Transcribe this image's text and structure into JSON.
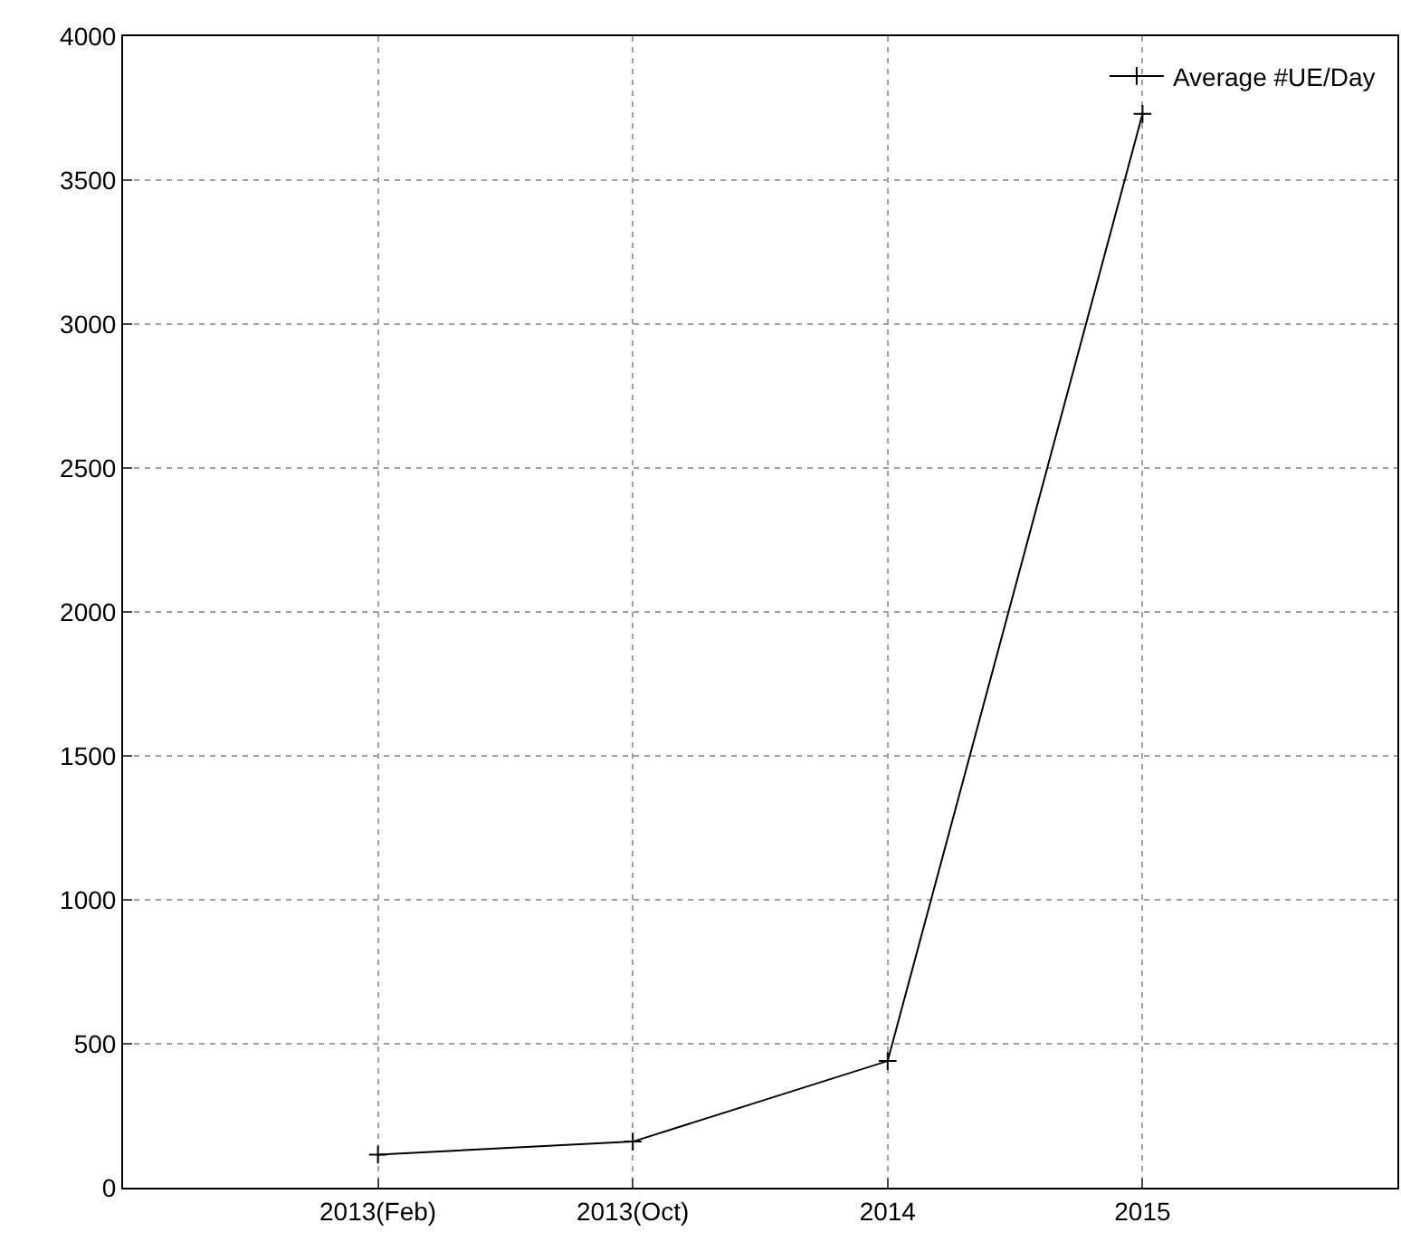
{
  "chart_data": {
    "type": "line",
    "categories": [
      "2013(Feb)",
      "2013(Oct)",
      "2014",
      "2015"
    ],
    "series": [
      {
        "name": "Average #UE/Day",
        "color": "#000000",
        "values": [
          115,
          160,
          440,
          3730
        ]
      }
    ],
    "ylim": [
      0,
      4000
    ],
    "yticks": [
      0,
      500,
      1000,
      1500,
      2000,
      2500,
      3000,
      3500,
      4000
    ],
    "grid": true,
    "legend": "top right",
    "marker": "cross",
    "line_style": "solid"
  }
}
